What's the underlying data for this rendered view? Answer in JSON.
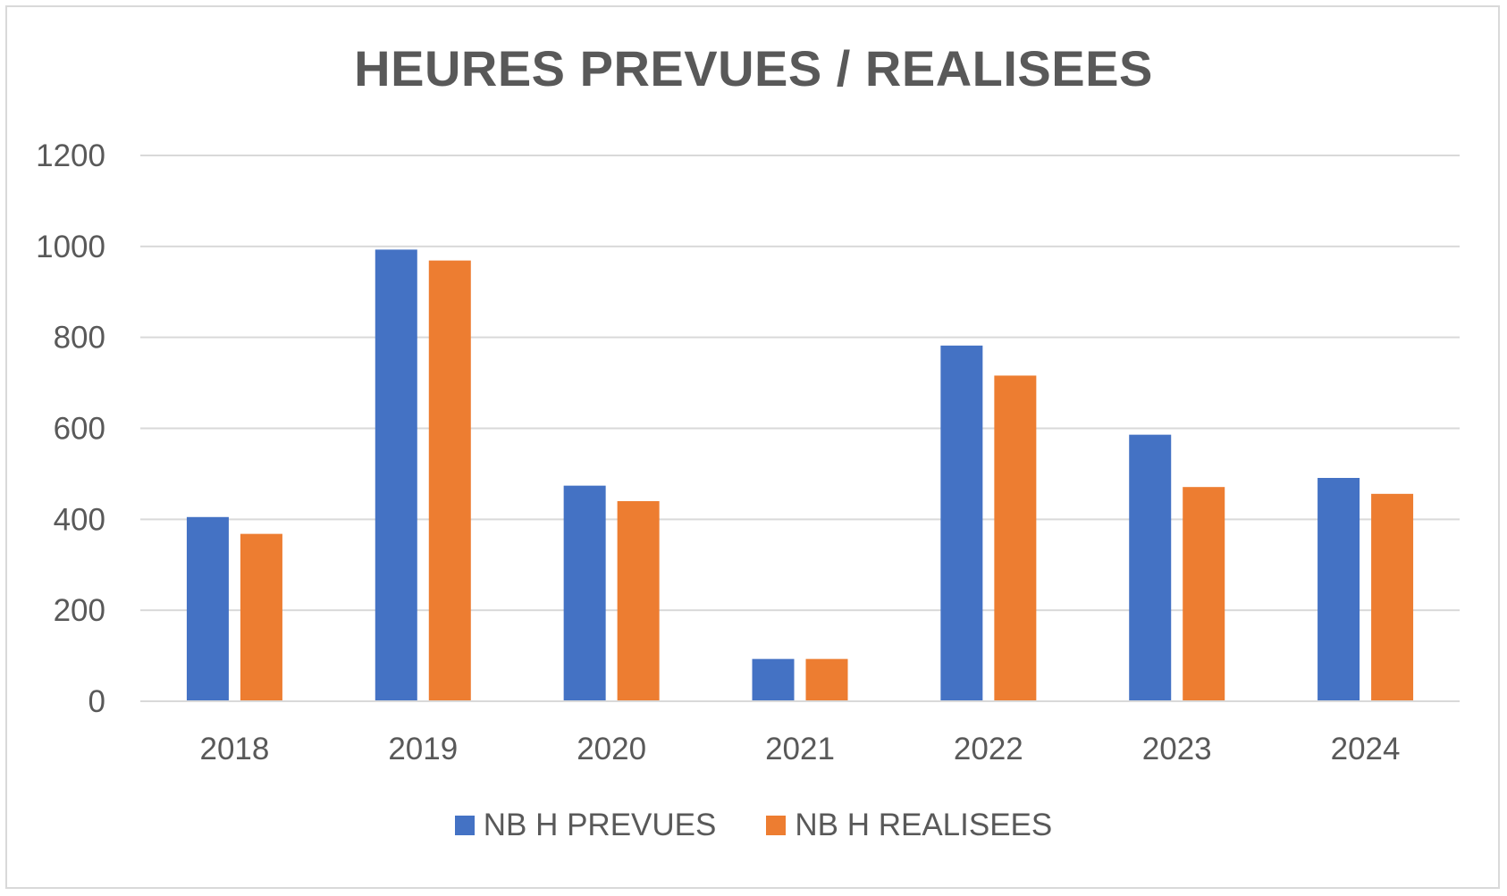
{
  "chart_data": {
    "type": "bar",
    "title": "HEURES PREVUES / REALISEES",
    "xlabel": "",
    "ylabel": "",
    "categories": [
      "2018",
      "2019",
      "2020",
      "2021",
      "2022",
      "2023",
      "2024"
    ],
    "series": [
      {
        "name": "NB H PREVUES",
        "color": "#4472c4",
        "values": [
          405,
          993,
          474,
          93,
          782,
          586,
          491
        ]
      },
      {
        "name": "NB H REALISEES",
        "color": "#ed7d31",
        "values": [
          368,
          969,
          440,
          93,
          716,
          471,
          456
        ]
      }
    ],
    "ylim": [
      0,
      1200
    ],
    "yticks": [
      "0",
      "200",
      "400",
      "600",
      "800",
      "1000",
      "1200"
    ],
    "grid": true,
    "gridline_color": "#d9d9d9",
    "legend_position": "bottom"
  }
}
